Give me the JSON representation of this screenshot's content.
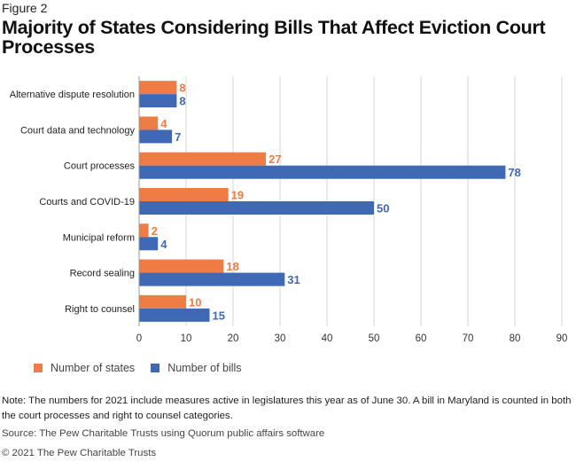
{
  "figure_label": "Figure 2",
  "title": "Majority of States Considering Bills That Affect Eviction Court Processes",
  "note": "Note: The numbers for 2021 include measures active in legislatures this year as of June 30. A bill in Maryland is counted in both the court processes and right to counsel categories.",
  "source": "Source: The Pew Charitable Trusts using Quorum public affairs software",
  "copyright": "© 2021 The Pew Charitable Trusts",
  "colors": {
    "states": "#f07c45",
    "bills": "#3f69b4",
    "grid": "#d6d6d6"
  },
  "legend": {
    "states_label": "Number of states",
    "bills_label": "Number of bills"
  },
  "chart_data": {
    "type": "bar",
    "orientation": "horizontal",
    "title": "Majority of States Considering Bills That Affect Eviction Court Processes",
    "xlabel": "",
    "ylabel": "",
    "xlim": [
      0,
      90
    ],
    "xticks": [
      0,
      10,
      20,
      30,
      40,
      50,
      60,
      70,
      80,
      90
    ],
    "grid": true,
    "legend_position": "bottom-left",
    "categories": [
      "Alternative dispute resolution",
      "Court data and technology",
      "Court processes",
      "Courts and COVID-19",
      "Municipal reform",
      "Record sealing",
      "Right to counsel"
    ],
    "series": [
      {
        "name": "Number of states",
        "values": [
          8,
          4,
          27,
          19,
          2,
          18,
          10
        ]
      },
      {
        "name": "Number of bills",
        "values": [
          8,
          7,
          78,
          50,
          4,
          31,
          15
        ]
      }
    ]
  }
}
